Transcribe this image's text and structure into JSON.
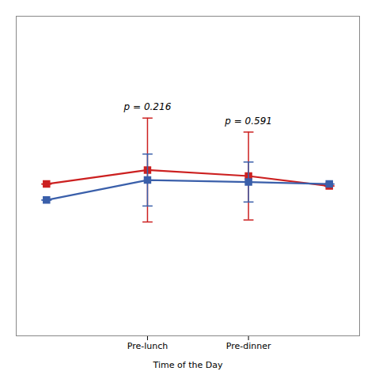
{
  "chart_data": {
    "type": "line",
    "x": [
      0,
      1,
      2,
      2.8
    ],
    "xlabel": "Time of the Day",
    "xlim": [
      -0.3,
      3.1
    ],
    "xticks": [
      {
        "value": 1,
        "label": "Pre-lunch"
      },
      {
        "value": 2,
        "label": "Pre-dinner"
      }
    ],
    "ylim": [
      -0.5,
      1.1
    ],
    "tick_labels": "x",
    "grid": false,
    "marker": "square",
    "series": [
      {
        "color": "#cc2020",
        "values": [
          0.26,
          0.33,
          0.3,
          0.25
        ],
        "errors": [
          0,
          0.26,
          0.22,
          0
        ]
      },
      {
        "color": "#3a5faa",
        "values": [
          0.18,
          0.28,
          0.27,
          0.26
        ],
        "errors": [
          0,
          0.13,
          0.1,
          0
        ]
      }
    ],
    "annotations": [
      {
        "text": "p = 0.216",
        "x": 1
      },
      {
        "text": "p = 0.591",
        "x": 2
      }
    ]
  }
}
